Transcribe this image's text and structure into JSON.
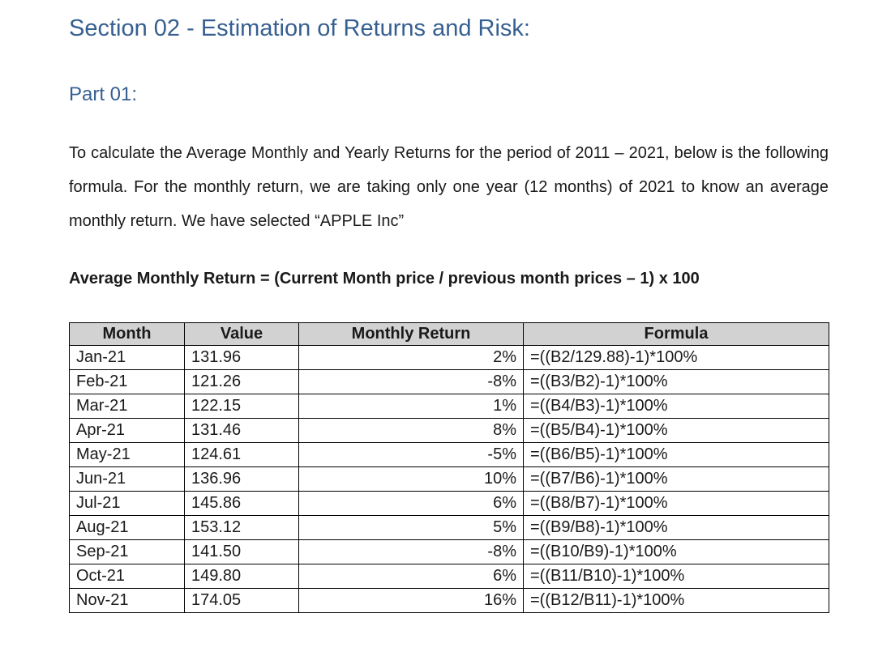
{
  "document": {
    "section_heading": "Section 02 - Estimation of Returns and Risk:",
    "part_subheading": "Part 01:",
    "intro_paragraph": "To calculate the Average Monthly and Yearly Returns for the period of 2011 – 2021, below is the following formula. For the monthly return, we are taking only one year (12 months) of 2021 to know an average monthly return. We have selected “APPLE Inc”",
    "formula_statement": "Average Monthly Return = (Current Month price / previous month prices – 1) x 100"
  },
  "table": {
    "headers": [
      "Month",
      "Value",
      "Monthly Return",
      "Formula"
    ],
    "rows": [
      [
        "Jan-21",
        "131.96",
        "2%",
        "=((B2/129.88)-1)*100%"
      ],
      [
        "Feb-21",
        "121.26",
        "-8%",
        "=((B3/B2)-1)*100%"
      ],
      [
        "Mar-21",
        "122.15",
        "1%",
        "=((B4/B3)-1)*100%"
      ],
      [
        "Apr-21",
        "131.46",
        "8%",
        "=((B5/B4)-1)*100%"
      ],
      [
        "May-21",
        "124.61",
        "-5%",
        "=((B6/B5)-1)*100%"
      ],
      [
        "Jun-21",
        "136.96",
        "10%",
        "=((B7/B6)-1)*100%"
      ],
      [
        "Jul-21",
        "145.86",
        "6%",
        "=((B8/B7)-1)*100%"
      ],
      [
        "Aug-21",
        "153.12",
        "5%",
        "=((B9/B8)-1)*100%"
      ],
      [
        "Sep-21",
        "141.50",
        "-8%",
        "=((B10/B9)-1)*100%"
      ],
      [
        "Oct-21",
        "149.80",
        "6%",
        "=((B11/B10)-1)*100%"
      ],
      [
        "Nov-21",
        "174.05",
        "16%",
        "=((B12/B11)-1)*100%"
      ]
    ],
    "cell_names": [
      "cell-month",
      "cell-value",
      "cell-monthly-return",
      "cell-formula"
    ]
  },
  "colors": {
    "heading_blue": "#365F91",
    "subheading_blue": "#365F91",
    "table_header_bg": "#D2D2D2",
    "table_border": "#000000",
    "body_text": "#1a1a1a"
  }
}
